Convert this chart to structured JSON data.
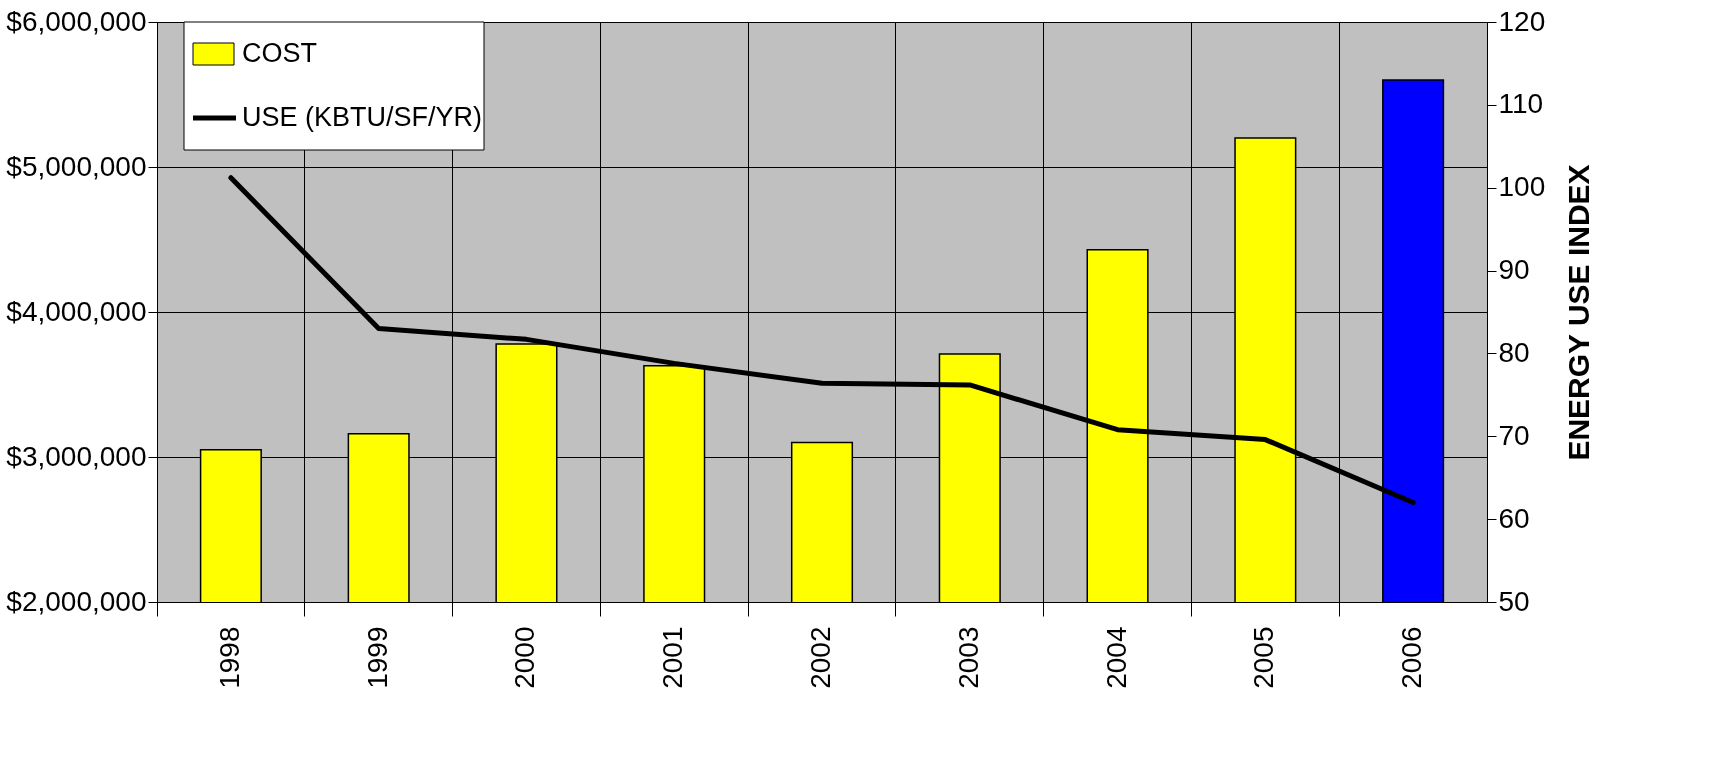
{
  "chart_data": {
    "type": "bar",
    "categories": [
      "1998",
      "1999",
      "2000",
      "2001",
      "2002",
      "2003",
      "2004",
      "2005",
      "2006"
    ],
    "series": [
      {
        "name": "COST",
        "color": "#ffff00",
        "colors": [
          "#ffff00",
          "#ffff00",
          "#ffff00",
          "#ffff00",
          "#ffff00",
          "#ffff00",
          "#ffff00",
          "#ffff00",
          "#0000ff"
        ],
        "values": [
          3050000,
          3160000,
          3780000,
          3630000,
          3100000,
          3710000,
          4430000,
          5200000,
          5600000
        ]
      },
      {
        "name": "USE (KBTU/SF/YR)",
        "type": "line",
        "axis": "y2",
        "color": "#000000",
        "values": [
          101.2,
          83.0,
          81.7,
          78.8,
          76.4,
          76.2,
          70.8,
          69.6,
          62.0
        ]
      }
    ],
    "ylim": [
      2000000,
      6000000
    ],
    "yticks": [
      {
        "value": 2000000,
        "label": "$2,000,000"
      },
      {
        "value": 3000000,
        "label": "$3,000,000"
      },
      {
        "value": 4000000,
        "label": "$4,000,000"
      },
      {
        "value": 5000000,
        "label": "$5,000,000"
      },
      {
        "value": 6000000,
        "label": "$6,000,000"
      }
    ],
    "y2lim": [
      50,
      120
    ],
    "y2ticks": [
      50,
      60,
      70,
      80,
      90,
      100,
      110,
      120
    ],
    "y2label": "ENERGY USE INDEX",
    "grid": true,
    "legend": "top left"
  }
}
